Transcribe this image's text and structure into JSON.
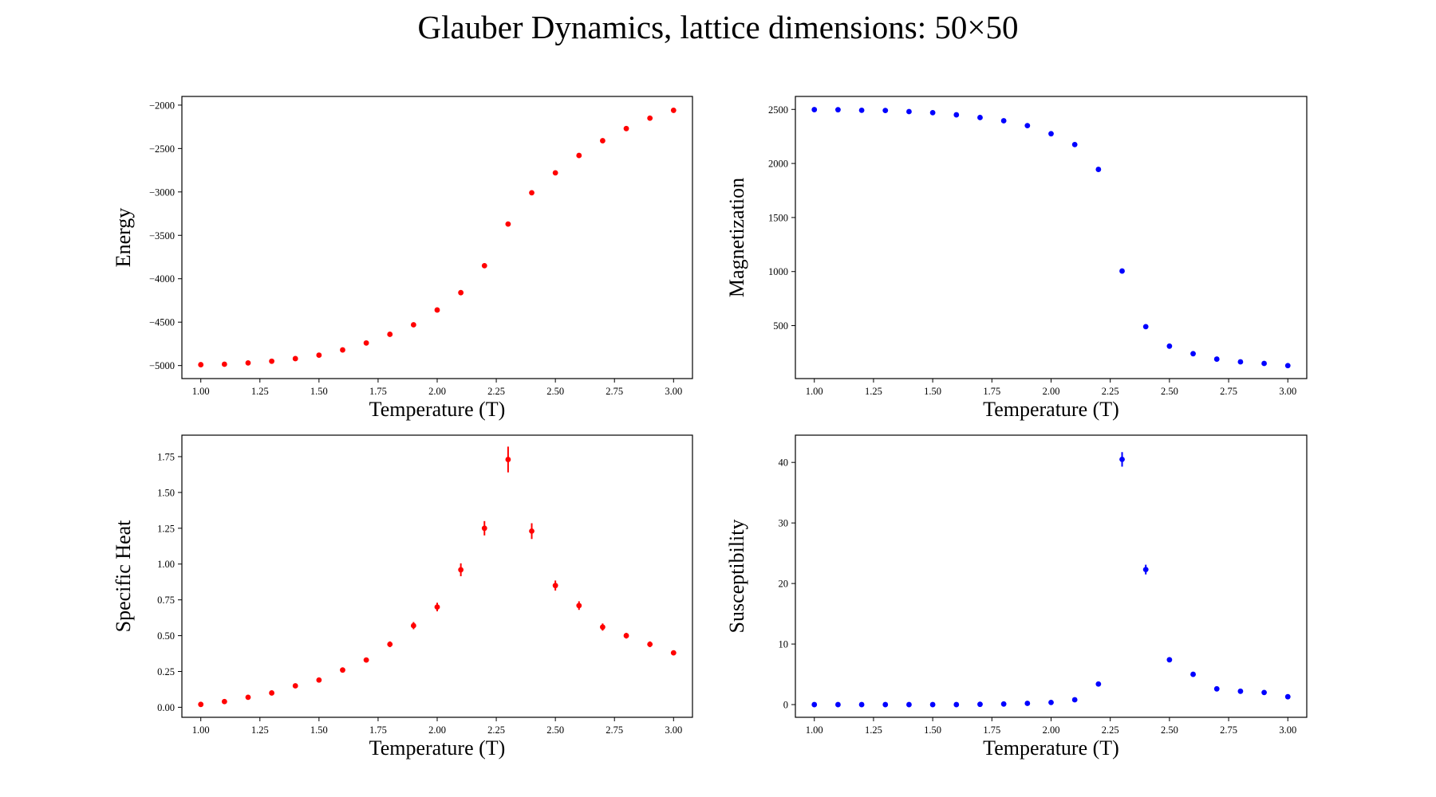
{
  "title": "Glauber Dynamics, lattice dimensions: 50×50",
  "chart_data": [
    {
      "type": "scatter",
      "color": "#ff0000",
      "xlabel": "Temperature (T)",
      "ylabel": "Energy",
      "xlim": [
        0.92,
        3.08
      ],
      "ylim": [
        -5150,
        -1900
      ],
      "xticks": [
        1.0,
        1.25,
        1.5,
        1.75,
        2.0,
        2.25,
        2.5,
        2.75,
        3.0
      ],
      "xtick_labels": [
        "1.00",
        "1.25",
        "1.50",
        "1.75",
        "2.00",
        "2.25",
        "2.50",
        "2.75",
        "3.00"
      ],
      "yticks": [
        -5000,
        -4500,
        -4000,
        -3500,
        -3000,
        -2500,
        -2000
      ],
      "ytick_labels": [
        "−5000",
        "−4500",
        "−4000",
        "−3500",
        "−3000",
        "−2500",
        "−2000"
      ],
      "x": [
        1.0,
        1.1,
        1.2,
        1.3,
        1.4,
        1.5,
        1.6,
        1.7,
        1.8,
        1.9,
        2.0,
        2.1,
        2.2,
        2.3,
        2.4,
        2.5,
        2.6,
        2.7,
        2.8,
        2.9,
        3.0
      ],
      "y": [
        -4990,
        -4985,
        -4970,
        -4950,
        -4920,
        -4880,
        -4820,
        -4740,
        -4640,
        -4530,
        -4360,
        -4160,
        -3850,
        -3370,
        -3010,
        -2780,
        -2580,
        -2410,
        -2270,
        -2150,
        -2060
      ],
      "yerr": [
        0,
        0,
        0,
        0,
        0,
        0,
        0,
        0,
        0,
        0,
        0,
        0,
        0,
        0,
        0,
        0,
        0,
        0,
        0,
        0,
        0
      ]
    },
    {
      "type": "scatter",
      "color": "#0000ff",
      "xlabel": "Temperature (T)",
      "ylabel": "Magnetization",
      "xlim": [
        0.92,
        3.08
      ],
      "ylim": [
        10,
        2620
      ],
      "xticks": [
        1.0,
        1.25,
        1.5,
        1.75,
        2.0,
        2.25,
        2.5,
        2.75,
        3.0
      ],
      "xtick_labels": [
        "1.00",
        "1.25",
        "1.50",
        "1.75",
        "2.00",
        "2.25",
        "2.50",
        "2.75",
        "3.00"
      ],
      "yticks": [
        500,
        1000,
        1500,
        2000,
        2500
      ],
      "ytick_labels": [
        "500",
        "1000",
        "1500",
        "2000",
        "2500"
      ],
      "x": [
        1.0,
        1.1,
        1.2,
        1.3,
        1.4,
        1.5,
        1.6,
        1.7,
        1.8,
        1.9,
        2.0,
        2.1,
        2.2,
        2.3,
        2.4,
        2.5,
        2.6,
        2.7,
        2.8,
        2.9,
        3.0
      ],
      "y": [
        2498,
        2497,
        2492,
        2490,
        2480,
        2470,
        2450,
        2425,
        2395,
        2350,
        2275,
        2175,
        1945,
        1005,
        490,
        310,
        240,
        190,
        165,
        150,
        130
      ],
      "yerr": [
        0,
        0,
        0,
        0,
        0,
        0,
        0,
        0,
        0,
        0,
        0,
        0,
        0,
        0,
        0,
        0,
        0,
        0,
        0,
        0,
        0
      ]
    },
    {
      "type": "scatter",
      "color": "#ff0000",
      "xlabel": "Temperature (T)",
      "ylabel": "Specific Heat",
      "xlim": [
        0.92,
        3.08
      ],
      "ylim": [
        -0.07,
        1.9
      ],
      "xticks": [
        1.0,
        1.25,
        1.5,
        1.75,
        2.0,
        2.25,
        2.5,
        2.75,
        3.0
      ],
      "xtick_labels": [
        "1.00",
        "1.25",
        "1.50",
        "1.75",
        "2.00",
        "2.25",
        "2.50",
        "2.75",
        "3.00"
      ],
      "yticks": [
        0.0,
        0.25,
        0.5,
        0.75,
        1.0,
        1.25,
        1.5,
        1.75
      ],
      "ytick_labels": [
        "0.00",
        "0.25",
        "0.50",
        "0.75",
        "1.00",
        "1.25",
        "1.50",
        "1.75"
      ],
      "x": [
        1.0,
        1.1,
        1.2,
        1.3,
        1.4,
        1.5,
        1.6,
        1.7,
        1.8,
        1.9,
        2.0,
        2.1,
        2.2,
        2.3,
        2.4,
        2.5,
        2.6,
        2.7,
        2.8,
        2.9,
        3.0
      ],
      "y": [
        0.02,
        0.04,
        0.07,
        0.1,
        0.15,
        0.19,
        0.26,
        0.33,
        0.44,
        0.57,
        0.7,
        0.96,
        1.25,
        1.73,
        1.23,
        0.85,
        0.71,
        0.56,
        0.5,
        0.44,
        0.38
      ],
      "yerr": [
        0.005,
        0.005,
        0.006,
        0.007,
        0.008,
        0.01,
        0.012,
        0.015,
        0.02,
        0.025,
        0.03,
        0.045,
        0.05,
        0.09,
        0.055,
        0.035,
        0.03,
        0.025,
        0.02,
        0.02,
        0.015
      ]
    },
    {
      "type": "scatter",
      "color": "#0000ff",
      "xlabel": "Temperature (T)",
      "ylabel": "Susceptibility",
      "xlim": [
        0.92,
        3.08
      ],
      "ylim": [
        -2.1,
        44.5
      ],
      "xticks": [
        1.0,
        1.25,
        1.5,
        1.75,
        2.0,
        2.25,
        2.5,
        2.75,
        3.0
      ],
      "xtick_labels": [
        "1.00",
        "1.25",
        "1.50",
        "1.75",
        "2.00",
        "2.25",
        "2.50",
        "2.75",
        "3.00"
      ],
      "yticks": [
        0,
        10,
        20,
        30,
        40
      ],
      "ytick_labels": [
        "0",
        "10",
        "20",
        "30",
        "40"
      ],
      "x": [
        1.0,
        1.1,
        1.2,
        1.3,
        1.4,
        1.5,
        1.6,
        1.7,
        1.8,
        1.9,
        2.0,
        2.1,
        2.2,
        2.3,
        2.4,
        2.5,
        2.6,
        2.7,
        2.8,
        2.9,
        3.0
      ],
      "y": [
        0.0,
        0.0,
        0.0,
        0.0,
        0.0,
        0.0,
        0.0,
        0.05,
        0.1,
        0.2,
        0.35,
        0.8,
        3.4,
        40.5,
        22.3,
        7.4,
        5.0,
        2.6,
        2.2,
        2.0,
        1.3
      ],
      "yerr": [
        0,
        0,
        0,
        0,
        0,
        0,
        0,
        0,
        0,
        0,
        0.05,
        0.1,
        0.25,
        1.2,
        0.8,
        0.3,
        0.2,
        0.15,
        0.1,
        0.1,
        0.1
      ]
    }
  ]
}
